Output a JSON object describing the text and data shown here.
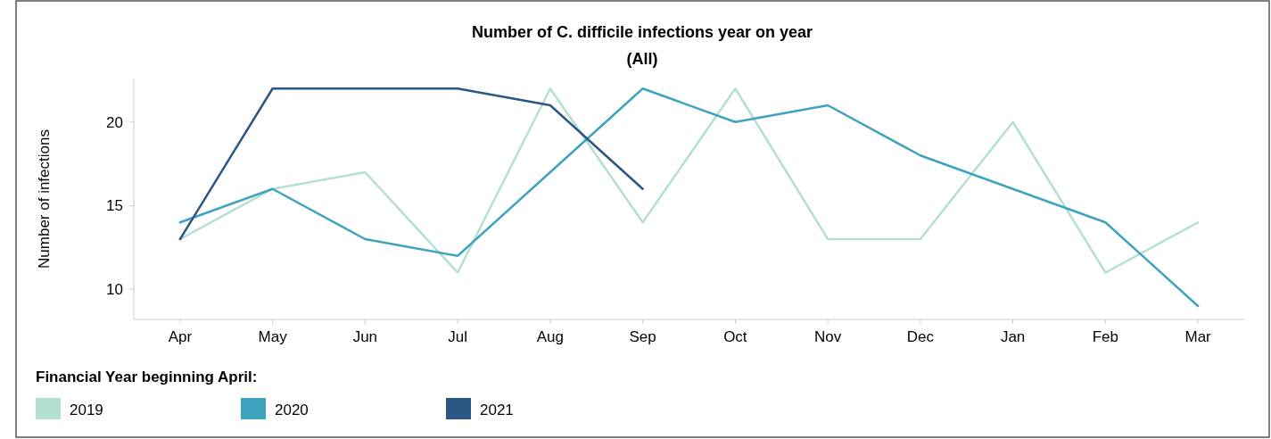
{
  "chart_data": {
    "type": "line",
    "title": "Number of C. difficile infections year on year",
    "subtitle": "(All)",
    "ylabel": "Number of infections",
    "legend_title": "Financial Year beginning April:",
    "legend": "bottom",
    "grid": false,
    "marker": "none",
    "line_style": "solid",
    "categories": [
      "Apr",
      "May",
      "Jun",
      "Jul",
      "Aug",
      "Sep",
      "Oct",
      "Nov",
      "Dec",
      "Jan",
      "Feb",
      "Mar"
    ],
    "ylim": [
      8.2,
      22.6
    ],
    "yticks": [
      10,
      15,
      20
    ],
    "series": [
      {
        "name": "2019",
        "color": "#b3e0d2",
        "values": [
          13,
          16,
          17,
          11,
          22,
          14,
          22,
          13,
          13,
          20,
          11,
          14
        ]
      },
      {
        "name": "2020",
        "color": "#3fa3bf",
        "values": [
          14,
          16,
          13,
          12,
          17,
          22,
          20,
          21,
          18,
          16,
          14,
          9
        ]
      },
      {
        "name": "2021",
        "color": "#2a5783",
        "values": [
          13,
          22,
          22,
          22,
          21,
          16,
          null,
          null,
          null,
          null,
          null,
          null
        ]
      }
    ]
  }
}
